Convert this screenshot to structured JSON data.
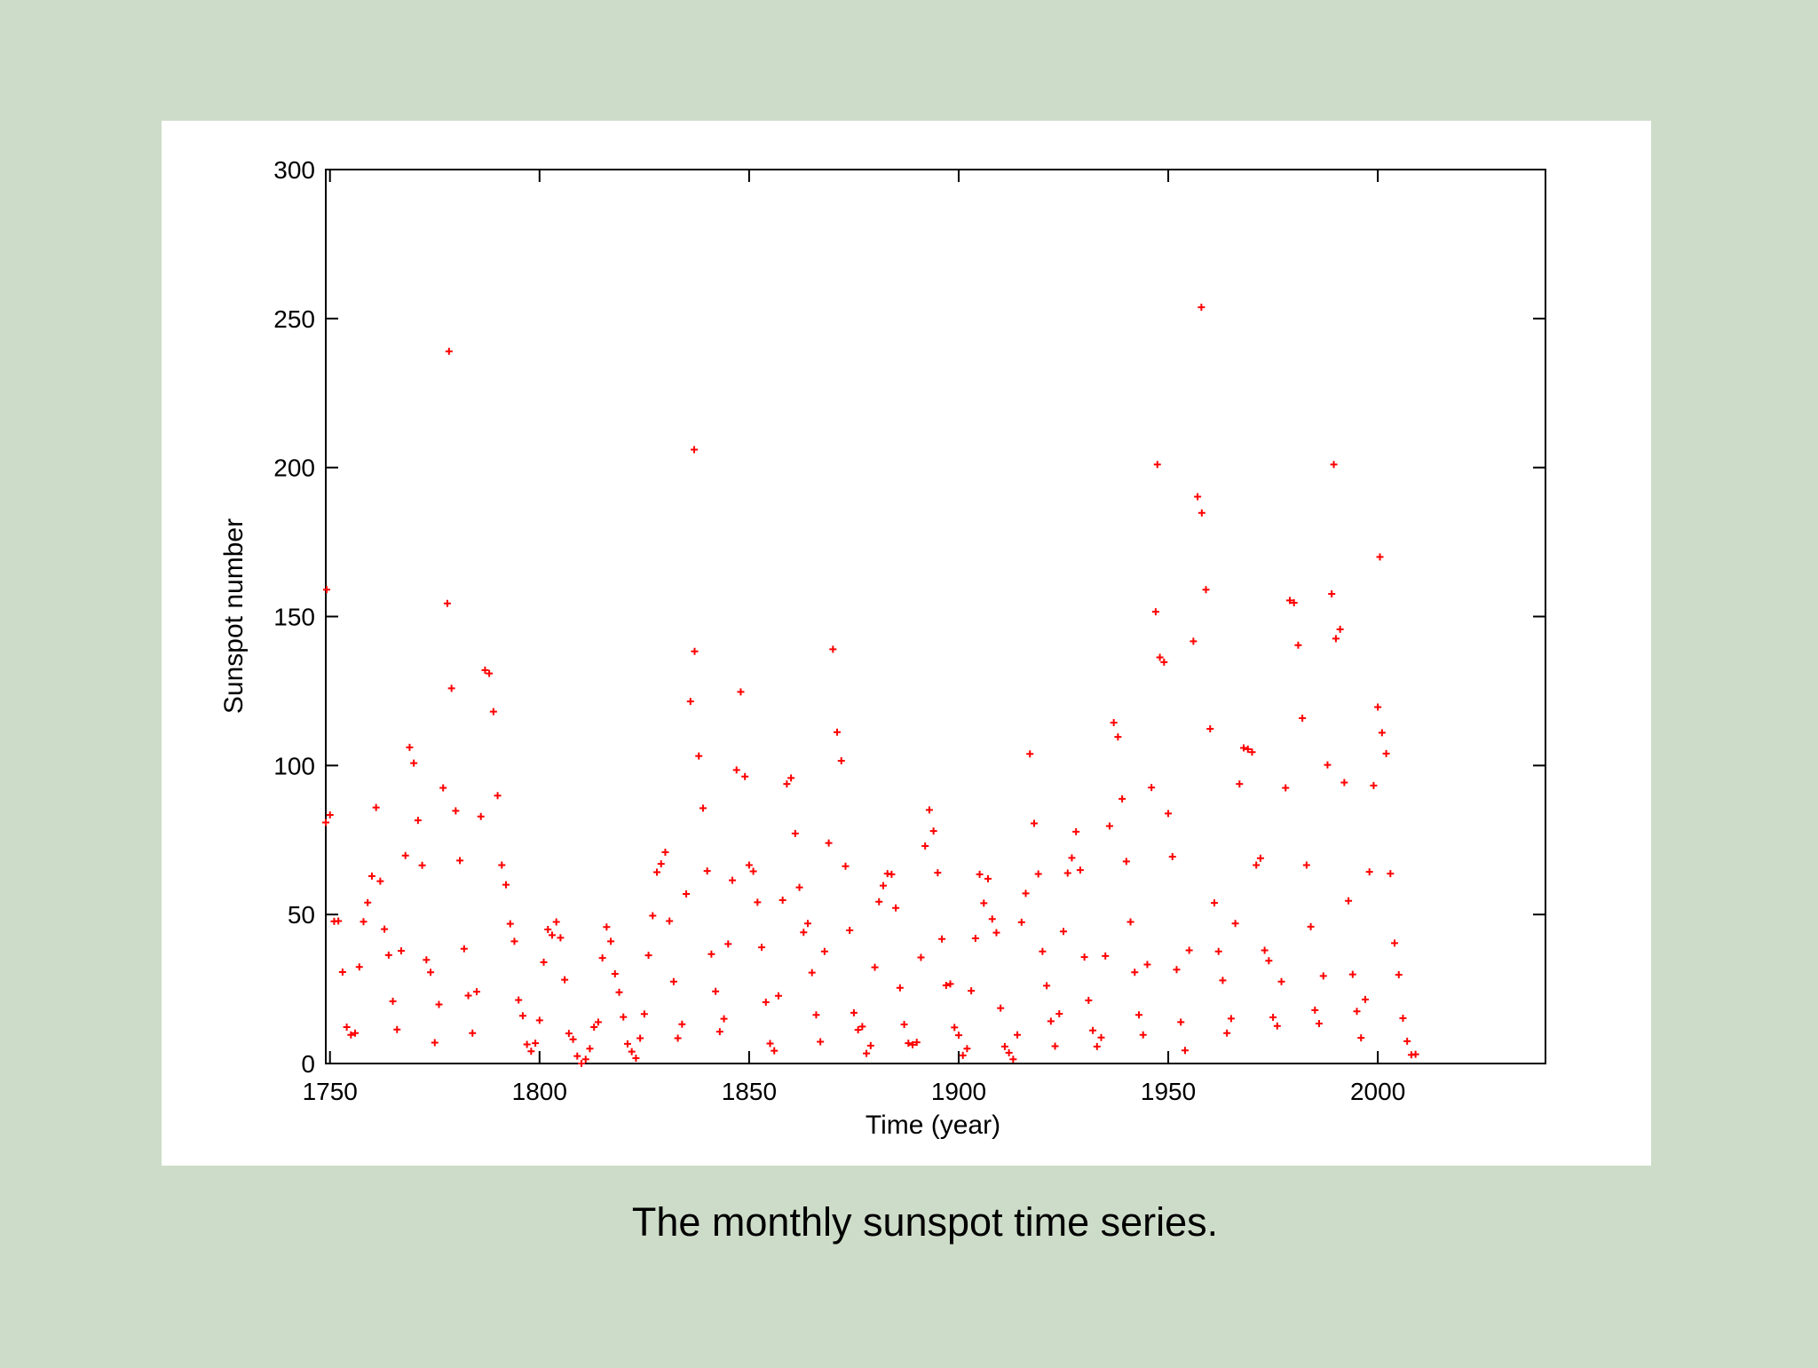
{
  "chart_data": {
    "type": "scatter",
    "caption": "The monthly sunspot time series.",
    "xlabel": "Time (year)",
    "ylabel": "Sunspot number",
    "color": "#ff0000",
    "xlim": [
      1749,
      2040
    ],
    "xticks": [
      1750,
      1800,
      1850,
      1900,
      1950,
      2000
    ],
    "ylim": [
      0,
      300
    ],
    "yticks": [
      0,
      50,
      100,
      150,
      200,
      250,
      300
    ],
    "x": [
      1749,
      1750,
      1751,
      1752,
      1753,
      1754,
      1755,
      1756,
      1757,
      1758,
      1759,
      1760,
      1761,
      1762,
      1763,
      1764,
      1765,
      1766,
      1767,
      1768,
      1769,
      1770,
      1771,
      1772,
      1773,
      1774,
      1775,
      1776,
      1777,
      1778,
      1779,
      1780,
      1781,
      1782,
      1783,
      1784,
      1785,
      1786,
      1787,
      1788,
      1789,
      1790,
      1791,
      1792,
      1793,
      1794,
      1795,
      1796,
      1797,
      1798,
      1799,
      1800,
      1801,
      1802,
      1803,
      1804,
      1805,
      1806,
      1807,
      1808,
      1809,
      1810,
      1811,
      1812,
      1813,
      1814,
      1815,
      1816,
      1817,
      1818,
      1819,
      1820,
      1821,
      1822,
      1823,
      1824,
      1825,
      1826,
      1827,
      1828,
      1829,
      1830,
      1831,
      1832,
      1833,
      1834,
      1835,
      1836,
      1837,
      1838,
      1839,
      1840,
      1841,
      1842,
      1843,
      1844,
      1845,
      1846,
      1847,
      1848,
      1849,
      1850,
      1851,
      1852,
      1853,
      1854,
      1855,
      1856,
      1857,
      1858,
      1859,
      1860,
      1861,
      1862,
      1863,
      1864,
      1865,
      1866,
      1867,
      1868,
      1869,
      1870,
      1871,
      1872,
      1873,
      1874,
      1875,
      1876,
      1877,
      1878,
      1879,
      1880,
      1881,
      1882,
      1883,
      1884,
      1885,
      1886,
      1887,
      1888,
      1889,
      1890,
      1891,
      1892,
      1893,
      1894,
      1895,
      1896,
      1897,
      1898,
      1899,
      1900,
      1901,
      1902,
      1903,
      1904,
      1905,
      1906,
      1907,
      1908,
      1909,
      1910,
      1911,
      1912,
      1913,
      1914,
      1915,
      1916,
      1917,
      1918,
      1919,
      1920,
      1921,
      1922,
      1923,
      1924,
      1925,
      1926,
      1927,
      1928,
      1929,
      1930,
      1931,
      1932,
      1933,
      1934,
      1935,
      1936,
      1937,
      1938,
      1939,
      1940,
      1941,
      1942,
      1943,
      1944,
      1945,
      1946,
      1947,
      1948,
      1949,
      1950,
      1951,
      1952,
      1953,
      1954,
      1955,
      1956,
      1957,
      1958,
      1959,
      1960,
      1961,
      1962,
      1963,
      1964,
      1965,
      1966,
      1967,
      1968,
      1969,
      1970,
      1971,
      1972,
      1973,
      1974,
      1975,
      1976,
      1977,
      1978,
      1979,
      1980,
      1981,
      1982,
      1983,
      1984,
      1985,
      1986,
      1987,
      1988,
      1989,
      1990,
      1991,
      1992,
      1993,
      1994,
      1995,
      1996,
      1997,
      1998,
      1999,
      2000,
      2001,
      2002,
      2003,
      2004,
      2005,
      2006,
      2007,
      2008,
      2009,
      1749.2,
      1778.4,
      1836.9,
      1947.4,
      1957.9,
      1989.5,
      2000.5
    ],
    "values": [
      80.9,
      83.4,
      47.7,
      47.8,
      30.7,
      12.2,
      9.6,
      10.2,
      32.4,
      47.6,
      54,
      62.9,
      85.9,
      61.2,
      45.1,
      36.4,
      20.9,
      11.4,
      37.8,
      69.8,
      106.1,
      100.8,
      81.6,
      66.5,
      34.8,
      30.6,
      7,
      19.8,
      92.5,
      154.4,
      125.9,
      84.8,
      68.1,
      38.5,
      22.8,
      10.2,
      24.1,
      82.9,
      132,
      130.9,
      118.1,
      89.9,
      66.6,
      60,
      46.9,
      41,
      21.3,
      16,
      6.4,
      4.1,
      6.8,
      14.5,
      34,
      45,
      43.1,
      47.5,
      42.2,
      28.1,
      10.1,
      8.1,
      2.5,
      0,
      1.4,
      5,
      12.2,
      13.9,
      35.4,
      45.8,
      41,
      30.1,
      23.9,
      15.6,
      6.6,
      4,
      1.8,
      8.5,
      16.6,
      36.3,
      49.6,
      64.2,
      67,
      70.9,
      47.8,
      27.5,
      8.5,
      13.2,
      56.9,
      121.5,
      138.3,
      103.2,
      85.7,
      64.6,
      36.7,
      24.2,
      10.7,
      15,
      40.1,
      61.5,
      98.5,
      124.7,
      96.3,
      66.6,
      64.5,
      54.1,
      39,
      20.6,
      6.7,
      4.3,
      22.7,
      54.8,
      93.8,
      95.8,
      77.2,
      59.1,
      44,
      47,
      30.5,
      16.3,
      7.3,
      37.6,
      74,
      139,
      111.2,
      101.6,
      66.2,
      44.7,
      17,
      11.3,
      12.4,
      3.4,
      6,
      32.3,
      54.3,
      59.7,
      63.7,
      63.5,
      52.2,
      25.4,
      13.1,
      6.8,
      6.3,
      7.1,
      35.6,
      73,
      85.1,
      78,
      64,
      41.8,
      26.2,
      26.7,
      12.1,
      9.5,
      2.7,
      5,
      24.4,
      42,
      63.5,
      53.8,
      62,
      48.5,
      43.9,
      18.6,
      5.7,
      3.6,
      1.4,
      9.6,
      47.4,
      57.1,
      103.9,
      80.6,
      63.6,
      37.6,
      26.1,
      14.2,
      5.8,
      16.7,
      44.3,
      63.9,
      69,
      77.8,
      64.9,
      35.7,
      21.2,
      11.1,
      5.7,
      8.7,
      36.1,
      79.7,
      114.4,
      109.6,
      88.8,
      67.8,
      47.5,
      30.6,
      16.3,
      9.6,
      33.2,
      92.6,
      151.6,
      136.3,
      134.7,
      83.9,
      69.4,
      31.5,
      13.9,
      4.4,
      38,
      141.7,
      190.2,
      184.8,
      159,
      112.3,
      53.9,
      37.6,
      27.9,
      10.2,
      15.1,
      47,
      93.8,
      105.9,
      105.5,
      104.5,
      66.6,
      68.9,
      38,
      34.5,
      15.5,
      12.6,
      27.5,
      92.5,
      155.4,
      154.6,
      140.4,
      115.9,
      66.6,
      45.9,
      17.9,
      13.4,
      29.4,
      100.2,
      157.6,
      142.6,
      145.7,
      94.3,
      54.6,
      29.9,
      17.5,
      8.6,
      21.5,
      64.3,
      93.3,
      119.6,
      111,
      104,
      63.7,
      40.4,
      29.8,
      15.2,
      7.5,
      2.9,
      3.1,
      159,
      239,
      206,
      201,
      253.8,
      201,
      170
    ]
  }
}
